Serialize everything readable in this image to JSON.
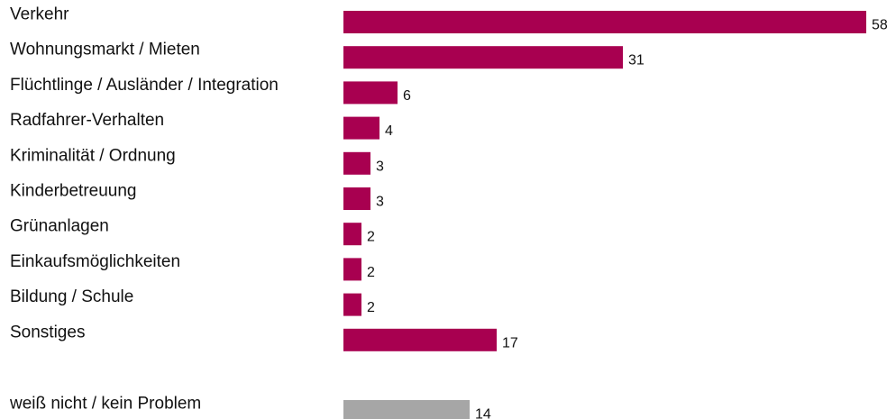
{
  "chart_data": {
    "type": "bar",
    "orientation": "horizontal",
    "title": "",
    "xlabel": "",
    "ylabel": "",
    "grid": false,
    "legend": "none",
    "xlim": [
      0,
      58
    ],
    "categories": [
      "Verkehr",
      "Wohnungsmarkt / Mieten",
      "Flüchtlinge / Ausländer / Integration",
      "Radfahrer-Verhalten",
      "Kriminalität / Ordnung",
      "Kinderbetreuung",
      "Grünanlagen",
      "Einkaufsmöglichkeiten",
      "Bildung / Schule",
      "Sonstiges",
      "weiß nicht / kein Problem"
    ],
    "values": [
      58,
      31,
      6,
      4,
      3,
      3,
      2,
      2,
      2,
      17,
      14
    ],
    "bar_colors": [
      "#a80050",
      "#a80050",
      "#a80050",
      "#a80050",
      "#a80050",
      "#a80050",
      "#a80050",
      "#a80050",
      "#a80050",
      "#a80050",
      "#a6a6a6"
    ]
  }
}
